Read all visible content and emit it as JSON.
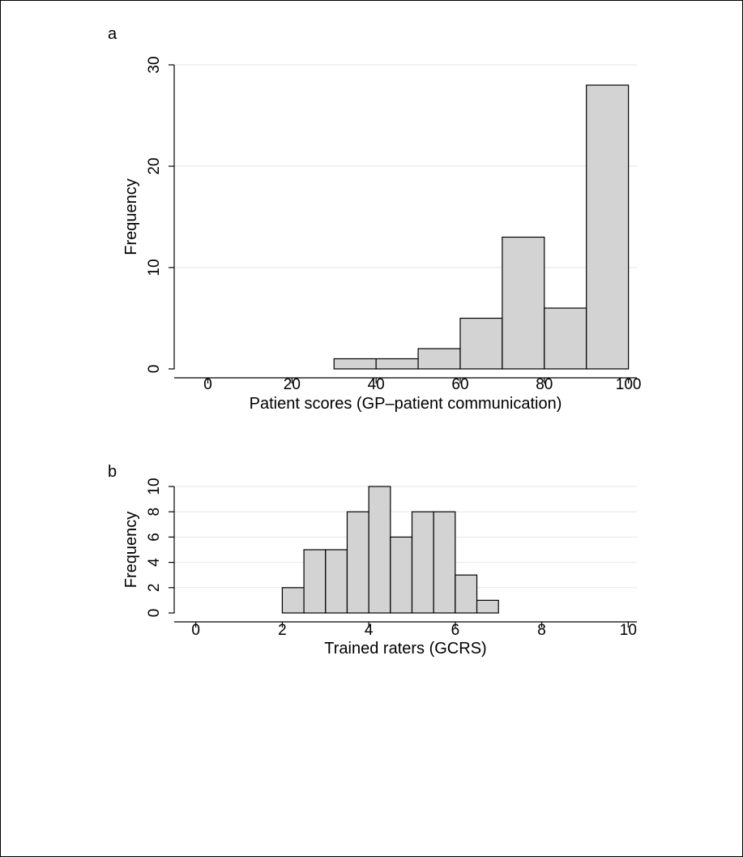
{
  "colors": {
    "bar_fill": "#d3d3d3",
    "bar_stroke": "#000000",
    "grid": "#e6e6e6",
    "background": "#ffffff"
  },
  "chart_data": [
    {
      "type": "bar",
      "panel_label": "a",
      "xlabel": "Patient scores (GP–patient communication)",
      "ylabel": "Frequency",
      "xlim": [
        -8,
        102
      ],
      "ylim": [
        0,
        30
      ],
      "xticks": [
        0,
        20,
        40,
        60,
        80,
        100
      ],
      "yticks": [
        0,
        10,
        20,
        30
      ],
      "grid": true,
      "bins": [
        {
          "x0": 30,
          "x1": 40,
          "count": 1
        },
        {
          "x0": 40,
          "x1": 50,
          "count": 1
        },
        {
          "x0": 50,
          "x1": 60,
          "count": 2
        },
        {
          "x0": 60,
          "x1": 70,
          "count": 5
        },
        {
          "x0": 70,
          "x1": 80,
          "count": 13
        },
        {
          "x0": 80,
          "x1": 90,
          "count": 6
        },
        {
          "x0": 90,
          "x1": 100,
          "count": 28
        }
      ]
    },
    {
      "type": "bar",
      "panel_label": "b",
      "xlabel": "Trained raters (GCRS)",
      "ylabel": "Frequency",
      "xlim": [
        -0.5,
        10.2
      ],
      "ylim": [
        0,
        10
      ],
      "xticks": [
        0,
        2,
        4,
        6,
        8,
        10
      ],
      "yticks": [
        0,
        2,
        4,
        6,
        8,
        10
      ],
      "grid": true,
      "bins": [
        {
          "x0": 2.0,
          "x1": 2.5,
          "count": 2
        },
        {
          "x0": 2.5,
          "x1": 3.0,
          "count": 5
        },
        {
          "x0": 3.0,
          "x1": 3.5,
          "count": 5
        },
        {
          "x0": 3.5,
          "x1": 4.0,
          "count": 8
        },
        {
          "x0": 4.0,
          "x1": 4.5,
          "count": 10
        },
        {
          "x0": 4.5,
          "x1": 5.0,
          "count": 6
        },
        {
          "x0": 5.0,
          "x1": 5.5,
          "count": 8
        },
        {
          "x0": 5.5,
          "x1": 6.0,
          "count": 8
        },
        {
          "x0": 6.0,
          "x1": 6.5,
          "count": 3
        },
        {
          "x0": 6.5,
          "x1": 7.0,
          "count": 1
        }
      ]
    }
  ]
}
